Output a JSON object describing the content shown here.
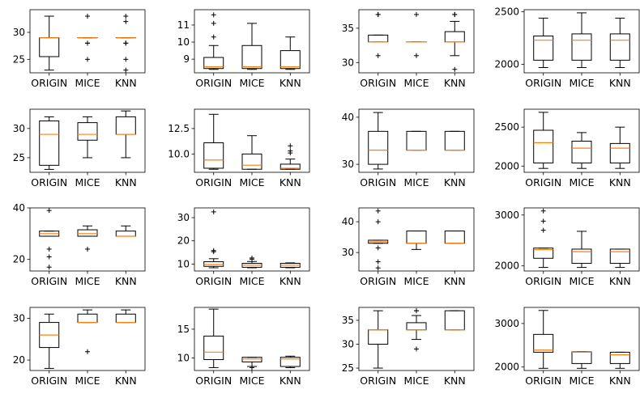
{
  "colors": {
    "median": "#ff7f0e",
    "box": "#000000",
    "background": "#ffffff"
  },
  "chart_data": [
    {
      "type": "boxplot",
      "categories": [
        "ORIGIN",
        "MICE",
        "KNN"
      ],
      "ylim": [
        22.5,
        34.2
      ],
      "yticks": [
        25,
        30
      ],
      "boxes": [
        {
          "whislo": 23,
          "q1": 25.5,
          "med": 29,
          "q3": 29,
          "whishi": 33,
          "fliers": []
        },
        {
          "whislo": 29,
          "q1": 29,
          "med": 29,
          "q3": 29,
          "whishi": 29,
          "fliers": [
            33,
            28,
            28,
            25
          ]
        },
        {
          "whislo": 29,
          "q1": 29,
          "med": 29,
          "q3": 29,
          "whishi": 29,
          "fliers": [
            33,
            32,
            28,
            28,
            25,
            23
          ]
        }
      ]
    },
    {
      "type": "boxplot",
      "categories": [
        "ORIGIN",
        "MICE",
        "KNN"
      ],
      "ylim": [
        8.2,
        11.9
      ],
      "yticks": [
        9,
        10,
        11
      ],
      "boxes": [
        {
          "whislo": 8.4,
          "q1": 8.45,
          "med": 8.55,
          "q3": 9.1,
          "whishi": 9.8,
          "fliers": [
            11.6,
            11.1,
            10.3
          ]
        },
        {
          "whislo": 8.4,
          "q1": 8.45,
          "med": 8.55,
          "q3": 9.8,
          "whishi": 11.1,
          "fliers": []
        },
        {
          "whislo": 8.4,
          "q1": 8.45,
          "med": 8.55,
          "q3": 9.5,
          "whishi": 10.3,
          "fliers": []
        }
      ]
    },
    {
      "type": "boxplot",
      "categories": [
        "ORIGIN",
        "MICE",
        "KNN"
      ],
      "ylim": [
        28.5,
        37.7
      ],
      "yticks": [
        30,
        35
      ],
      "boxes": [
        {
          "whislo": 33,
          "q1": 33,
          "med": 33,
          "q3": 34,
          "whishi": 34,
          "fliers": [
            37,
            37,
            31
          ]
        },
        {
          "whislo": 33,
          "q1": 33,
          "med": 33,
          "q3": 33,
          "whishi": 33,
          "fliers": [
            37,
            31
          ]
        },
        {
          "whislo": 31,
          "q1": 33,
          "med": 33,
          "q3": 34.5,
          "whishi": 36,
          "fliers": [
            37,
            37,
            29
          ]
        }
      ]
    },
    {
      "type": "boxplot",
      "categories": [
        "ORIGIN",
        "MICE",
        "KNN"
      ],
      "ylim": [
        1920,
        2520
      ],
      "yticks": [
        2000,
        2500
      ],
      "boxes": [
        {
          "whislo": 1970,
          "q1": 2040,
          "med": 2230,
          "q3": 2270,
          "whishi": 2440,
          "fliers": []
        },
        {
          "whislo": 1970,
          "q1": 2040,
          "med": 2230,
          "q3": 2290,
          "whishi": 2490,
          "fliers": []
        },
        {
          "whislo": 1970,
          "q1": 2040,
          "med": 2230,
          "q3": 2290,
          "whishi": 2440,
          "fliers": []
        }
      ]
    },
    {
      "type": "boxplot",
      "categories": [
        "ORIGIN",
        "MICE",
        "KNN"
      ],
      "ylim": [
        22.5,
        33.3
      ],
      "yticks": [
        25,
        30
      ],
      "boxes": [
        {
          "whislo": 23,
          "q1": 23.7,
          "med": 29,
          "q3": 31.3,
          "whishi": 32,
          "fliers": []
        },
        {
          "whislo": 25,
          "q1": 28,
          "med": 29,
          "q3": 31,
          "whishi": 32,
          "fliers": []
        },
        {
          "whislo": 25,
          "q1": 29,
          "med": 29,
          "q3": 32,
          "whishi": 33,
          "fliers": []
        }
      ]
    },
    {
      "type": "boxplot",
      "categories": [
        "ORIGIN",
        "MICE",
        "KNN"
      ],
      "ylim": [
        8.2,
        14.4
      ],
      "yticks": [
        10.0,
        12.5
      ],
      "tick_format": "0.0",
      "boxes": [
        {
          "whislo": 8.5,
          "q1": 8.6,
          "med": 9.4,
          "q3": 11.1,
          "whishi": 13.9,
          "fliers": []
        },
        {
          "whislo": 8.5,
          "q1": 8.5,
          "med": 8.9,
          "q3": 10.0,
          "whishi": 11.8,
          "fliers": []
        },
        {
          "whislo": 8.5,
          "q1": 8.5,
          "med": 8.6,
          "q3": 9.0,
          "whishi": 9.5,
          "fliers": [
            10.8,
            10.3,
            10.1
          ]
        }
      ]
    },
    {
      "type": "boxplot",
      "categories": [
        "ORIGIN",
        "MICE",
        "KNN"
      ],
      "ylim": [
        28.3,
        41.7
      ],
      "yticks": [
        30,
        40
      ],
      "boxes": [
        {
          "whislo": 29,
          "q1": 30,
          "med": 33,
          "q3": 37,
          "whishi": 41,
          "fliers": []
        },
        {
          "whislo": 33,
          "q1": 33,
          "med": 33,
          "q3": 37,
          "whishi": 37,
          "fliers": []
        },
        {
          "whislo": 33,
          "q1": 33,
          "med": 33,
          "q3": 37,
          "whishi": 37,
          "fliers": []
        }
      ]
    },
    {
      "type": "boxplot",
      "categories": [
        "ORIGIN",
        "MICE",
        "KNN"
      ],
      "ylim": [
        1920,
        2730
      ],
      "yticks": [
        2000,
        2500
      ],
      "boxes": [
        {
          "whislo": 1970,
          "q1": 2040,
          "med": 2300,
          "q3": 2460,
          "whishi": 2690,
          "fliers": []
        },
        {
          "whislo": 1970,
          "q1": 2040,
          "med": 2230,
          "q3": 2320,
          "whishi": 2430,
          "fliers": []
        },
        {
          "whislo": 1970,
          "q1": 2040,
          "med": 2230,
          "q3": 2290,
          "whishi": 2500,
          "fliers": []
        }
      ]
    },
    {
      "type": "boxplot",
      "categories": [
        "ORIGIN",
        "MICE",
        "KNN"
      ],
      "ylim": [
        15.5,
        40
      ],
      "yticks": [
        20,
        40
      ],
      "boxes": [
        {
          "whislo": 29,
          "q1": 29,
          "med": 30,
          "q3": 31,
          "whishi": 31,
          "fliers": [
            39,
            24,
            21,
            17
          ]
        },
        {
          "whislo": 29,
          "q1": 29,
          "med": 30,
          "q3": 31.5,
          "whishi": 33,
          "fliers": [
            24
          ]
        },
        {
          "whislo": 29,
          "q1": 29,
          "med": 29,
          "q3": 31,
          "whishi": 33,
          "fliers": []
        }
      ]
    },
    {
      "type": "boxplot",
      "categories": [
        "ORIGIN",
        "MICE",
        "KNN"
      ],
      "ylim": [
        7,
        34.2
      ],
      "yticks": [
        10,
        20,
        30
      ],
      "boxes": [
        {
          "whislo": 8.4,
          "q1": 9,
          "med": 9.8,
          "q3": 11,
          "whishi": 12.3,
          "fliers": [
            32.5,
            15.8,
            15.3
          ]
        },
        {
          "whislo": 8.4,
          "q1": 8.6,
          "med": 9.5,
          "q3": 10.3,
          "whishi": 11.1,
          "fliers": [
            12.6,
            12.1
          ]
        },
        {
          "whislo": 8.4,
          "q1": 8.6,
          "med": 9.5,
          "q3": 10.3,
          "whishi": 10.5,
          "fliers": []
        }
      ]
    },
    {
      "type": "boxplot",
      "categories": [
        "ORIGIN",
        "MICE",
        "KNN"
      ],
      "ylim": [
        24,
        44.5
      ],
      "yticks": [
        30,
        40
      ],
      "boxes": [
        {
          "whislo": 33,
          "q1": 33,
          "med": 33.5,
          "q3": 34,
          "whishi": 34,
          "fliers": [
            43.5,
            40,
            31.5,
            27,
            25
          ]
        },
        {
          "whislo": 31,
          "q1": 33,
          "med": 33,
          "q3": 37,
          "whishi": 37,
          "fliers": []
        },
        {
          "whislo": 33,
          "q1": 33,
          "med": 33,
          "q3": 37,
          "whishi": 37,
          "fliers": []
        }
      ]
    },
    {
      "type": "boxplot",
      "categories": [
        "ORIGIN",
        "MICE",
        "KNN"
      ],
      "ylim": [
        1900,
        3140
      ],
      "yticks": [
        2000,
        3000
      ],
      "boxes": [
        {
          "whislo": 1970,
          "q1": 2150,
          "med": 2320,
          "q3": 2350,
          "whishi": 2350,
          "fliers": [
            3080,
            2880,
            2700
          ]
        },
        {
          "whislo": 1970,
          "q1": 2050,
          "med": 2280,
          "q3": 2330,
          "whishi": 2680,
          "fliers": []
        },
        {
          "whislo": 1970,
          "q1": 2050,
          "med": 2280,
          "q3": 2330,
          "whishi": 2330,
          "fliers": []
        }
      ]
    },
    {
      "type": "boxplot",
      "categories": [
        "ORIGIN",
        "MICE",
        "KNN"
      ],
      "ylim": [
        17.5,
        32.6
      ],
      "yticks": [
        20,
        30
      ],
      "boxes": [
        {
          "whislo": 18,
          "q1": 23,
          "med": 26,
          "q3": 29,
          "whishi": 31,
          "fliers": []
        },
        {
          "whislo": 29,
          "q1": 29,
          "med": 29,
          "q3": 31,
          "whishi": 32,
          "fliers": [
            22
          ]
        },
        {
          "whislo": 29,
          "q1": 29,
          "med": 29,
          "q3": 31,
          "whishi": 32,
          "fliers": []
        }
      ]
    },
    {
      "type": "boxplot",
      "categories": [
        "ORIGIN",
        "MICE",
        "KNN"
      ],
      "ylim": [
        7.8,
        18.8
      ],
      "yticks": [
        10,
        15
      ],
      "boxes": [
        {
          "whislo": 8.3,
          "q1": 9.7,
          "med": 11,
          "q3": 13.8,
          "whishi": 18.5,
          "fliers": []
        },
        {
          "whislo": 8.5,
          "q1": 9.3,
          "med": 9.8,
          "q3": 10.1,
          "whishi": 10.1,
          "fliers": [
            8.3
          ]
        },
        {
          "whislo": 8.3,
          "q1": 8.5,
          "med": 9.8,
          "q3": 10.1,
          "whishi": 10.3,
          "fliers": []
        }
      ]
    },
    {
      "type": "boxplot",
      "categories": [
        "ORIGIN",
        "MICE",
        "KNN"
      ],
      "ylim": [
        24.5,
        37.7
      ],
      "yticks": [
        25,
        30,
        35
      ],
      "boxes": [
        {
          "whislo": 25,
          "q1": 30,
          "med": 33,
          "q3": 33,
          "whishi": 37,
          "fliers": []
        },
        {
          "whislo": 31,
          "q1": 33,
          "med": 33,
          "q3": 34.5,
          "whishi": 36,
          "fliers": [
            37,
            37,
            29
          ]
        },
        {
          "whislo": 33,
          "q1": 33,
          "med": 33,
          "q3": 37,
          "whishi": 37,
          "fliers": []
        }
      ]
    },
    {
      "type": "boxplot",
      "categories": [
        "ORIGIN",
        "MICE",
        "KNN"
      ],
      "ylim": [
        1920,
        3370
      ],
      "yticks": [
        2000,
        3000
      ],
      "boxes": [
        {
          "whislo": 1970,
          "q1": 2340,
          "med": 2390,
          "q3": 2750,
          "whishi": 3300,
          "fliers": []
        },
        {
          "whislo": 1970,
          "q1": 2080,
          "med": 2340,
          "q3": 2350,
          "whishi": 2350,
          "fliers": []
        },
        {
          "whislo": 1970,
          "q1": 2080,
          "med": 2280,
          "q3": 2340,
          "whishi": 2340,
          "fliers": []
        }
      ]
    }
  ]
}
